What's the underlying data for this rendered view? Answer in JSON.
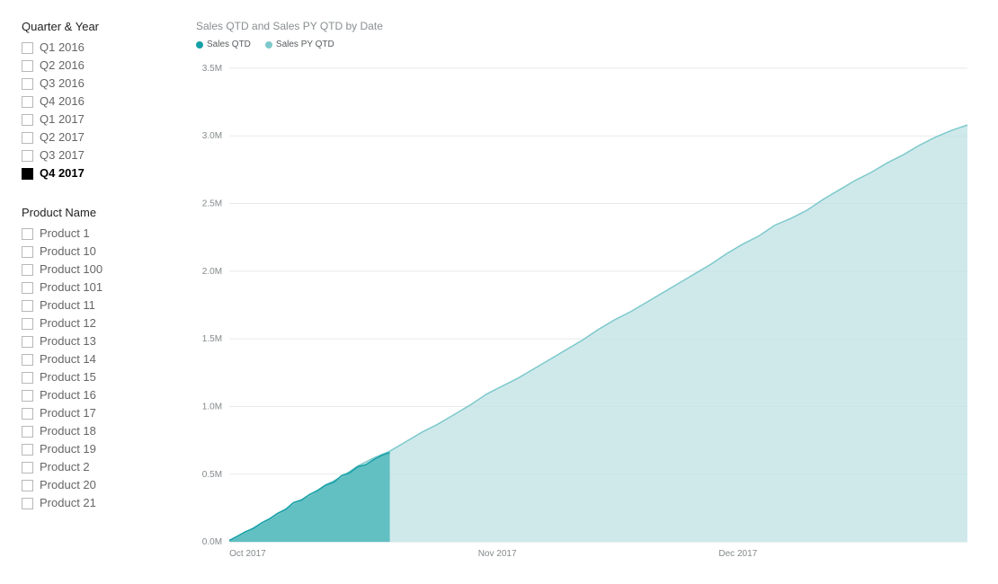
{
  "filters": {
    "quarterYear": {
      "title": "Quarter & Year",
      "items": [
        {
          "label": "Q1 2016",
          "selected": false
        },
        {
          "label": "Q2 2016",
          "selected": false
        },
        {
          "label": "Q3 2016",
          "selected": false
        },
        {
          "label": "Q4 2016",
          "selected": false
        },
        {
          "label": "Q1 2017",
          "selected": false
        },
        {
          "label": "Q2 2017",
          "selected": false
        },
        {
          "label": "Q3 2017",
          "selected": false
        },
        {
          "label": "Q4 2017",
          "selected": true
        }
      ]
    },
    "productName": {
      "title": "Product Name",
      "items": [
        {
          "label": "Product 1",
          "selected": false
        },
        {
          "label": "Product 10",
          "selected": false
        },
        {
          "label": "Product 100",
          "selected": false
        },
        {
          "label": "Product 101",
          "selected": false
        },
        {
          "label": "Product 11",
          "selected": false
        },
        {
          "label": "Product 12",
          "selected": false
        },
        {
          "label": "Product 13",
          "selected": false
        },
        {
          "label": "Product 14",
          "selected": false
        },
        {
          "label": "Product 15",
          "selected": false
        },
        {
          "label": "Product 16",
          "selected": false
        },
        {
          "label": "Product 17",
          "selected": false
        },
        {
          "label": "Product 18",
          "selected": false
        },
        {
          "label": "Product 19",
          "selected": false
        },
        {
          "label": "Product 2",
          "selected": false
        },
        {
          "label": "Product 20",
          "selected": false
        },
        {
          "label": "Product 21",
          "selected": false
        }
      ]
    }
  },
  "chart": {
    "title": "Sales QTD and Sales PY QTD by Date",
    "type": "area",
    "background_color": "#ffffff",
    "grid_color": "#e8eaea",
    "tick_font_size": 10,
    "tick_color": "#848a8c",
    "title_color": "#8a8f91",
    "title_font_size": 12,
    "legend_font_size": 10,
    "y": {
      "min": 0,
      "max": 3500000,
      "step": 500000,
      "ticks": [
        {
          "v": 0,
          "label": "0.0M"
        },
        {
          "v": 500000,
          "label": "0.5M"
        },
        {
          "v": 1000000,
          "label": "1.0M"
        },
        {
          "v": 1500000,
          "label": "1.5M"
        },
        {
          "v": 2000000,
          "label": "2.0M"
        },
        {
          "v": 2500000,
          "label": "2.5M"
        },
        {
          "v": 3000000,
          "label": "3.0M"
        },
        {
          "v": 3500000,
          "label": "3.5M"
        }
      ]
    },
    "x": {
      "min": 0,
      "max": 92,
      "ticks": [
        {
          "v": 0,
          "label": "Oct 2017"
        },
        {
          "v": 31,
          "label": "Nov 2017"
        },
        {
          "v": 61,
          "label": "Dec 2017"
        }
      ]
    },
    "series": [
      {
        "name": "Sales PY QTD",
        "color": "#7ec9cc",
        "fill_color": "#bfe2e4",
        "fill_opacity": 0.75,
        "line_width": 1.5,
        "data": [
          {
            "x": 0,
            "y": 10000
          },
          {
            "x": 2,
            "y": 70000
          },
          {
            "x": 4,
            "y": 135000
          },
          {
            "x": 6,
            "y": 200000
          },
          {
            "x": 8,
            "y": 280000
          },
          {
            "x": 10,
            "y": 340000
          },
          {
            "x": 12,
            "y": 420000
          },
          {
            "x": 14,
            "y": 480000
          },
          {
            "x": 16,
            "y": 560000
          },
          {
            "x": 18,
            "y": 620000
          },
          {
            "x": 20,
            "y": 670000
          },
          {
            "x": 22,
            "y": 740000
          },
          {
            "x": 24,
            "y": 810000
          },
          {
            "x": 26,
            "y": 870000
          },
          {
            "x": 28,
            "y": 940000
          },
          {
            "x": 30,
            "y": 1010000
          },
          {
            "x": 32,
            "y": 1090000
          },
          {
            "x": 34,
            "y": 1150000
          },
          {
            "x": 36,
            "y": 1210000
          },
          {
            "x": 38,
            "y": 1280000
          },
          {
            "x": 40,
            "y": 1350000
          },
          {
            "x": 42,
            "y": 1420000
          },
          {
            "x": 44,
            "y": 1490000
          },
          {
            "x": 46,
            "y": 1570000
          },
          {
            "x": 48,
            "y": 1640000
          },
          {
            "x": 50,
            "y": 1700000
          },
          {
            "x": 52,
            "y": 1770000
          },
          {
            "x": 54,
            "y": 1840000
          },
          {
            "x": 56,
            "y": 1910000
          },
          {
            "x": 58,
            "y": 1980000
          },
          {
            "x": 60,
            "y": 2050000
          },
          {
            "x": 62,
            "y": 2130000
          },
          {
            "x": 64,
            "y": 2200000
          },
          {
            "x": 66,
            "y": 2260000
          },
          {
            "x": 68,
            "y": 2340000
          },
          {
            "x": 70,
            "y": 2390000
          },
          {
            "x": 72,
            "y": 2450000
          },
          {
            "x": 74,
            "y": 2530000
          },
          {
            "x": 76,
            "y": 2600000
          },
          {
            "x": 78,
            "y": 2670000
          },
          {
            "x": 80,
            "y": 2730000
          },
          {
            "x": 82,
            "y": 2800000
          },
          {
            "x": 84,
            "y": 2860000
          },
          {
            "x": 86,
            "y": 2930000
          },
          {
            "x": 88,
            "y": 2990000
          },
          {
            "x": 90,
            "y": 3040000
          },
          {
            "x": 92,
            "y": 3080000
          }
        ]
      },
      {
        "name": "Sales QTD",
        "color": "#14a0a6",
        "fill_color": "#4fb7bb",
        "fill_opacity": 0.85,
        "line_width": 1.5,
        "data": [
          {
            "x": 0,
            "y": 10000
          },
          {
            "x": 1,
            "y": 42000
          },
          {
            "x": 2,
            "y": 75000
          },
          {
            "x": 3,
            "y": 100000
          },
          {
            "x": 4,
            "y": 140000
          },
          {
            "x": 5,
            "y": 170000
          },
          {
            "x": 6,
            "y": 210000
          },
          {
            "x": 7,
            "y": 240000
          },
          {
            "x": 8,
            "y": 290000
          },
          {
            "x": 9,
            "y": 310000
          },
          {
            "x": 10,
            "y": 350000
          },
          {
            "x": 11,
            "y": 380000
          },
          {
            "x": 12,
            "y": 420000
          },
          {
            "x": 13,
            "y": 440000
          },
          {
            "x": 14,
            "y": 490000
          },
          {
            "x": 15,
            "y": 510000
          },
          {
            "x": 16,
            "y": 555000
          },
          {
            "x": 17,
            "y": 570000
          },
          {
            "x": 18,
            "y": 608000
          },
          {
            "x": 19,
            "y": 640000
          },
          {
            "x": 20,
            "y": 660000
          }
        ]
      }
    ],
    "legend": [
      {
        "label": "Sales QTD",
        "color": "#14a0a6"
      },
      {
        "label": "Sales PY QTD",
        "color": "#7ec9cc"
      }
    ]
  }
}
